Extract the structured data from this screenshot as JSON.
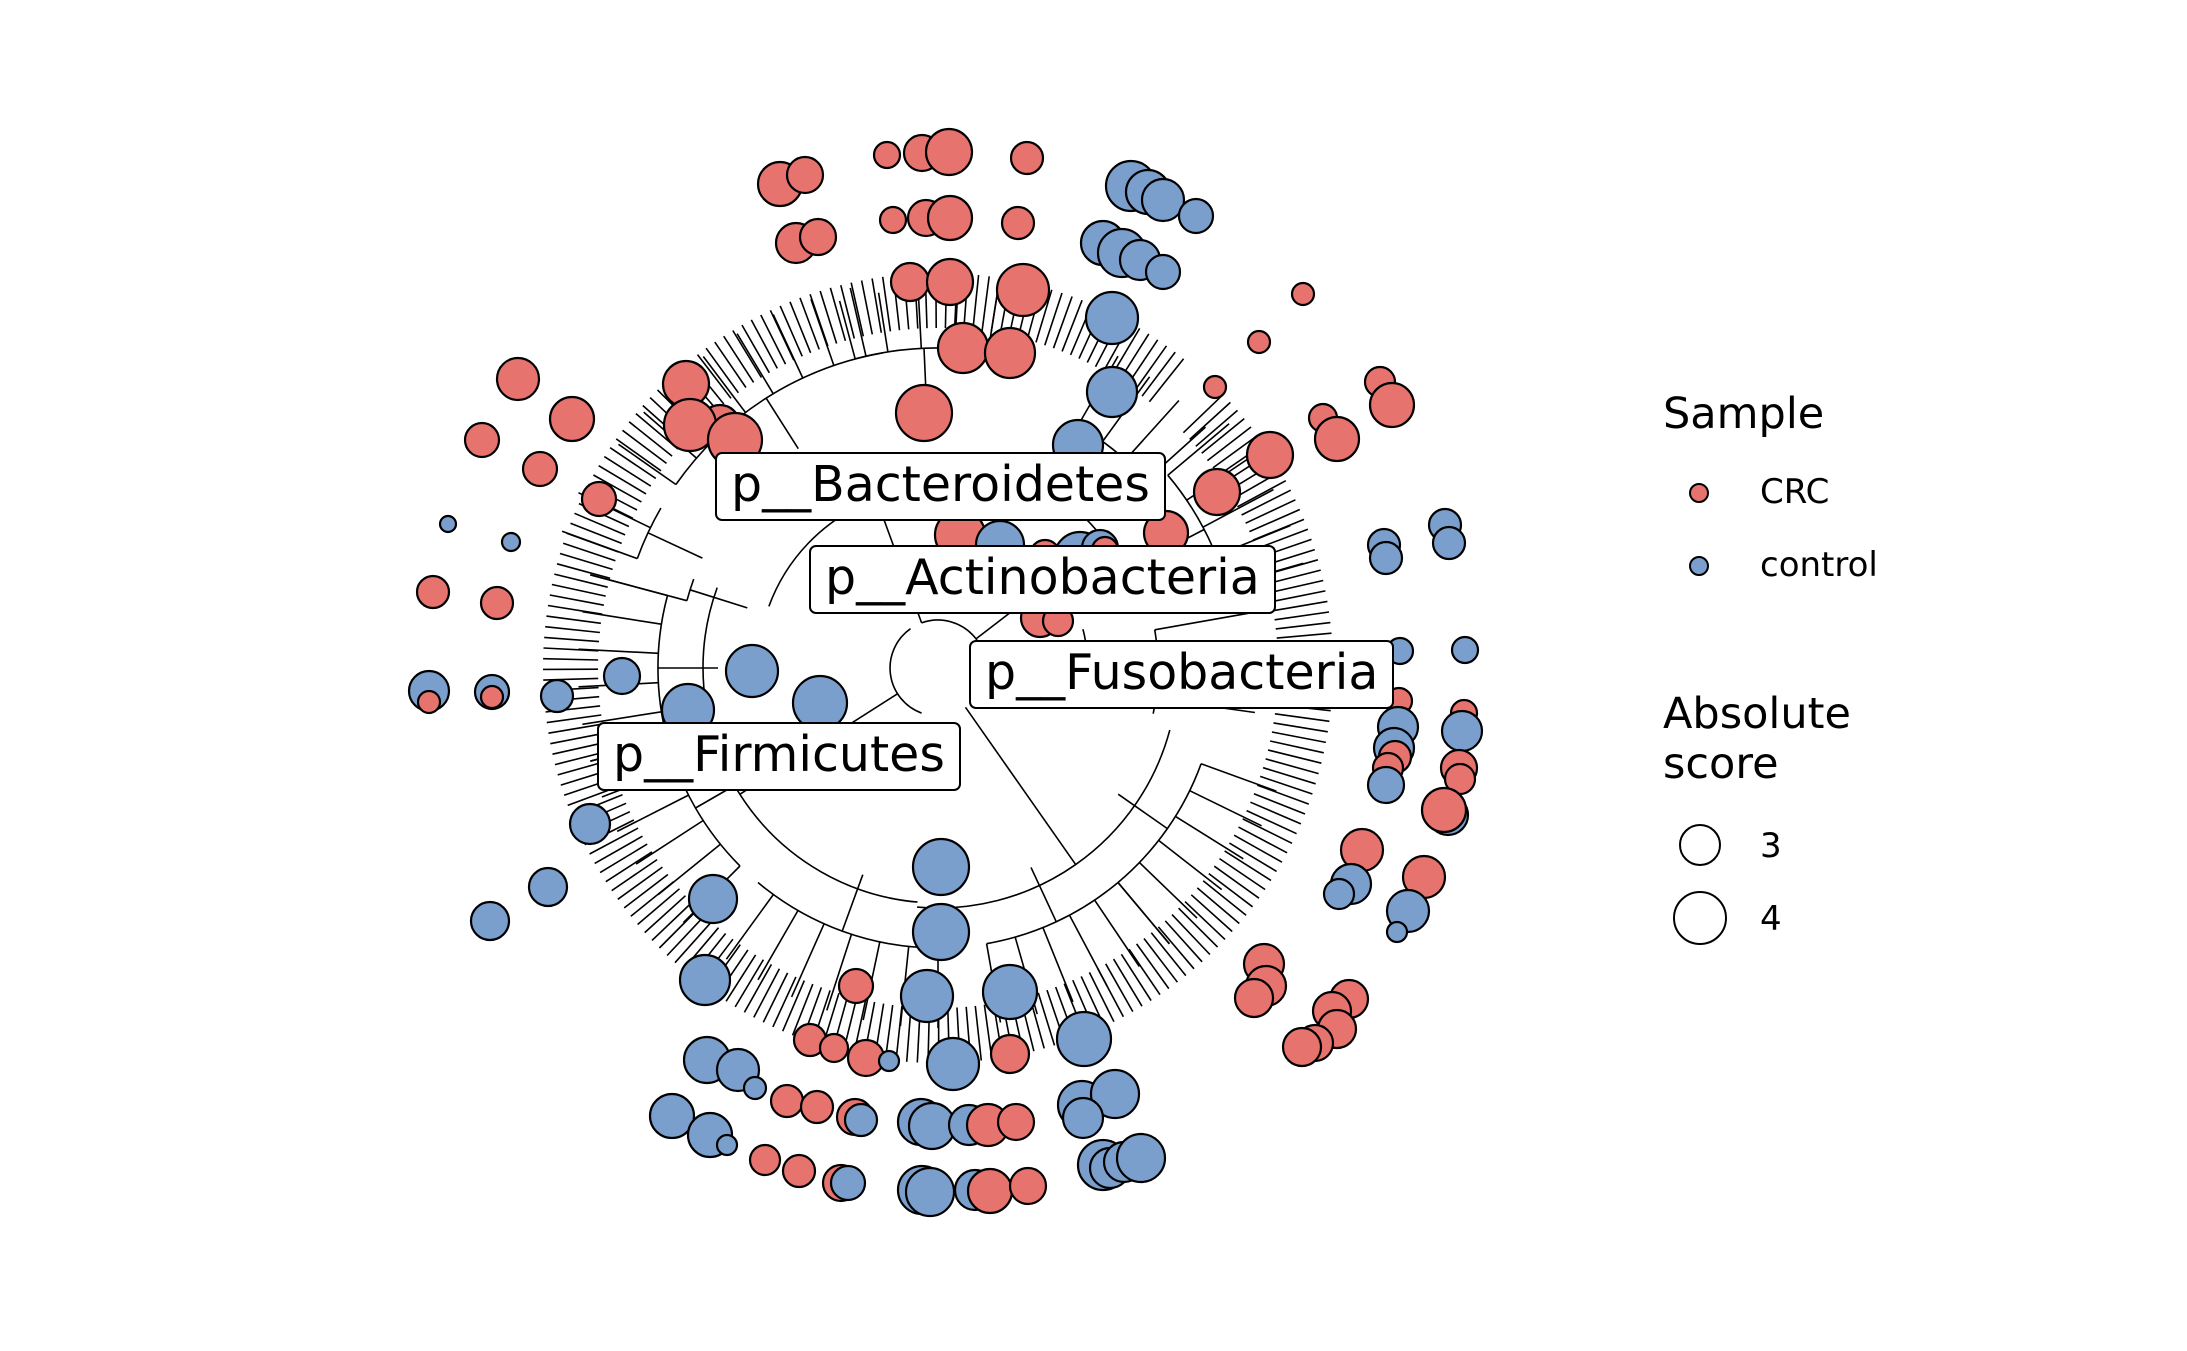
{
  "colors": {
    "crc": "#E6736E",
    "control": "#7B9FCC",
    "stroke": "#000000"
  },
  "clade_labels": {
    "bacteroidetes": "p__Bacteroidetes",
    "actinobacteria": "p__Actinobacteria",
    "fusobacteria": "p__Fusobacteria",
    "firmicutes": "p__Firmicutes"
  },
  "legend": {
    "sample": {
      "title": "Sample",
      "items": [
        {
          "label": "CRC",
          "color": "#E6736E"
        },
        {
          "label": "control",
          "color": "#7B9FCC"
        }
      ]
    },
    "score": {
      "title_line1": "Absolute",
      "title_line2": "score",
      "items": [
        {
          "label": "3",
          "value": 3
        },
        {
          "label": "4",
          "value": 4
        }
      ]
    }
  }
}
